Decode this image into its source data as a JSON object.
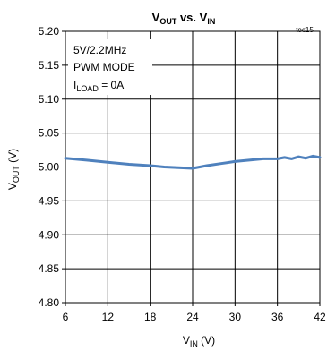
{
  "chart_data": {
    "type": "line",
    "title": {
      "main": "V",
      "sub1": "OUT",
      "mid": " vs. V",
      "sub2": "IN"
    },
    "figure_id": "toc15",
    "xlabel": {
      "main": "V",
      "sub": "IN",
      "unit": " (V)"
    },
    "ylabel": {
      "main": "V",
      "sub": "OUT",
      "unit": " (V)"
    },
    "xlim": [
      6,
      42
    ],
    "ylim": [
      4.8,
      5.2
    ],
    "x_ticks": [
      "6",
      "12",
      "18",
      "24",
      "30",
      "36",
      "42"
    ],
    "y_ticks": [
      "5.20",
      "5.15",
      "5.10",
      "5.05",
      "5.00",
      "4.95",
      "4.90",
      "4.85",
      "4.80"
    ],
    "grid": true,
    "annotation": {
      "line1": "5V/2.2MHz",
      "line2": "PWM MODE",
      "line3_main": "I",
      "line3_sub": "LOAD",
      "line3_rest": " = 0A"
    },
    "series": [
      {
        "color": "#4f81bd",
        "x": [
          6,
          9,
          12,
          15,
          18,
          20,
          22,
          24,
          26,
          28,
          30,
          32,
          34,
          36,
          37,
          38,
          39,
          40,
          41,
          42
        ],
        "y": [
          5.013,
          5.01,
          5.007,
          5.004,
          5.002,
          5.0,
          4.999,
          4.998,
          5.002,
          5.005,
          5.008,
          5.01,
          5.012,
          5.012,
          5.014,
          5.012,
          5.015,
          5.013,
          5.016,
          5.014
        ]
      }
    ]
  }
}
